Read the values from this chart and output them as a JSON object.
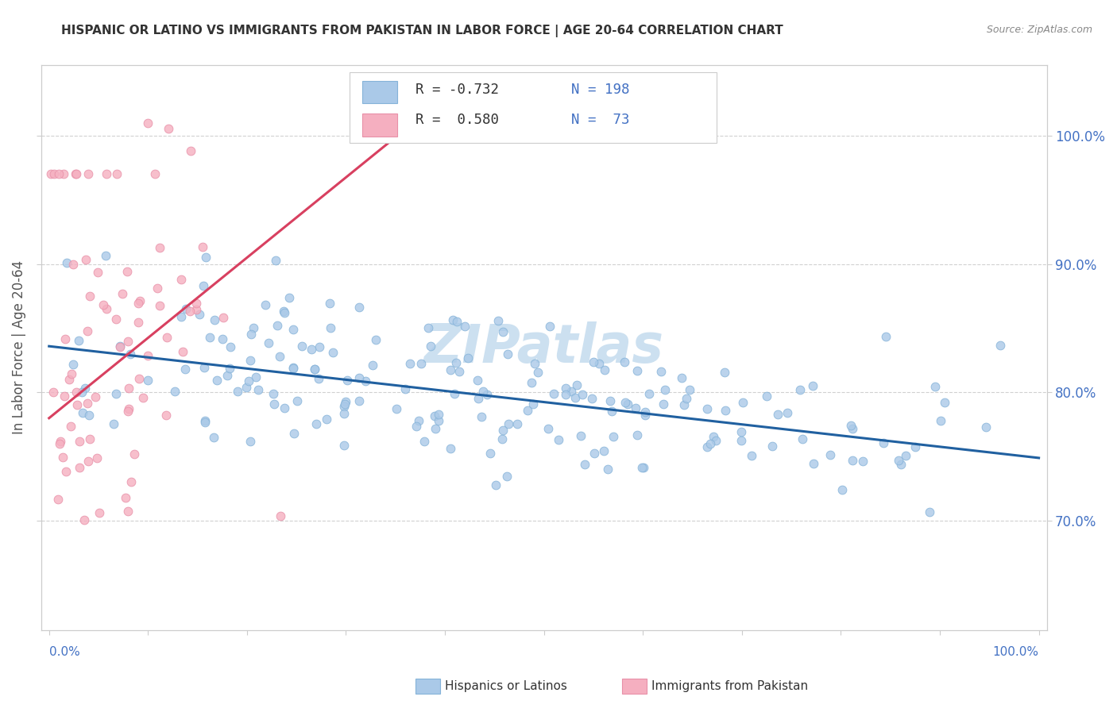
{
  "title": "HISPANIC OR LATINO VS IMMIGRANTS FROM PAKISTAN IN LABOR FORCE | AGE 20-64 CORRELATION CHART",
  "source": "Source: ZipAtlas.com",
  "ylabel": "In Labor Force | Age 20-64",
  "y_ticks": [
    0.7,
    0.8,
    0.9,
    1.0
  ],
  "y_tick_labels": [
    "70.0%",
    "80.0%",
    "90.0%",
    "100.0%"
  ],
  "watermark": "ZIPatlas",
  "legend_label_blue": "Hispanics or Latinos",
  "legend_label_pink": "Immigrants from Pakistan",
  "blue_fill": "#aac9e8",
  "pink_fill": "#f5afc0",
  "blue_edge": "#85b3d8",
  "pink_edge": "#e890a8",
  "blue_line_color": "#2060a0",
  "pink_line_color": "#d84060",
  "blue_r_val": "-0.732",
  "blue_n_val": "198",
  "pink_r_val": "0.580",
  "pink_n_val": "73",
  "r_text_color": "#333333",
  "n_text_color": "#4472c4",
  "ytick_color": "#4472c4",
  "xtick_color": "#4472c4",
  "ylabel_color": "#555555",
  "title_color": "#333333",
  "source_color": "#888888",
  "watermark_color": "#cce0f0",
  "grid_color": "#cccccc",
  "spine_color": "#cccccc",
  "blue_n": 198,
  "pink_n": 73,
  "seed": 42,
  "blue_line_x": [
    0.0,
    1.0
  ],
  "blue_line_y": [
    0.836,
    0.749
  ],
  "pink_line_x": [
    0.0,
    0.36
  ],
  "pink_line_y": [
    0.78,
    1.005
  ],
  "xlim": [
    -0.008,
    1.008
  ],
  "ylim": [
    0.615,
    1.055
  ],
  "marker_size": 60
}
